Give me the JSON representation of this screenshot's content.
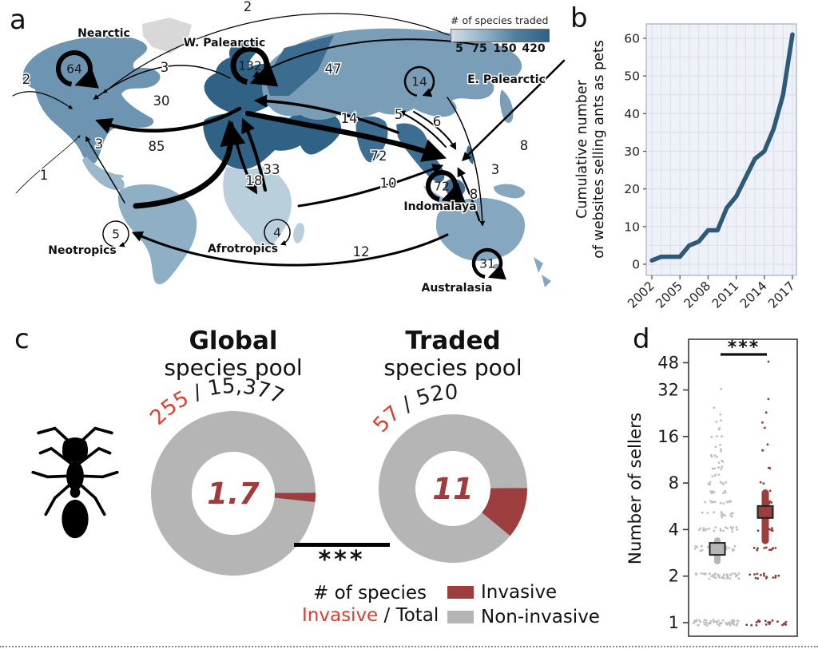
{
  "figure": {
    "panel_a_label": "a",
    "panel_b_label": "b",
    "panel_c_label": "c",
    "panel_d_label": "d"
  },
  "map": {
    "legend": {
      "title": "# of species traded",
      "ticks": [
        "5",
        "75",
        "150",
        "420"
      ]
    },
    "regions": [
      {
        "id": "nearctic",
        "label": "Nearctic",
        "self_value": "64"
      },
      {
        "id": "w_palearctic",
        "label": "W. Palearctic",
        "self_value": "132"
      },
      {
        "id": "e_palearctic",
        "label": "E. Palearctic",
        "self_value": "14"
      },
      {
        "id": "neotropics",
        "label": "Neotropics",
        "self_value": "5"
      },
      {
        "id": "afrotropics",
        "label": "Afrotropics",
        "self_value": "4"
      },
      {
        "id": "indomalaya",
        "label": "Indomalaya",
        "self_value": "72"
      },
      {
        "id": "australasia",
        "label": "Australasia",
        "self_value": "31"
      }
    ],
    "flows": [
      {
        "id": "top2",
        "value": "2"
      },
      {
        "id": "wp_na3",
        "value": "3"
      },
      {
        "id": "wp_na30",
        "value": "30"
      },
      {
        "id": "left2",
        "value": "2"
      },
      {
        "id": "left1",
        "value": "1"
      },
      {
        "id": "neo_na3",
        "value": "3"
      },
      {
        "id": "neo_wp85",
        "value": "85"
      },
      {
        "id": "ep_wp47",
        "value": "47"
      },
      {
        "id": "ep_wp14",
        "value": "14"
      },
      {
        "id": "wp_indo72",
        "value": "72"
      },
      {
        "id": "afr_wp33",
        "value": "33"
      },
      {
        "id": "wp_afr18",
        "value": "18"
      },
      {
        "id": "indo_ep5",
        "value": "5"
      },
      {
        "id": "ep_indo6",
        "value": "6"
      },
      {
        "id": "afr_indo10",
        "value": "10"
      },
      {
        "id": "aus_indo8",
        "value": "8"
      },
      {
        "id": "ep_aus3",
        "value": "3"
      },
      {
        "id": "right8",
        "value": "8"
      },
      {
        "id": "aus_neo12",
        "value": "12"
      }
    ]
  },
  "chart_data": [
    {
      "id": "websites_line",
      "type": "line",
      "ylabel_line1": "Cumulative number",
      "ylabel_line2": "of websites selling ants as pets",
      "x": [
        2002,
        2003,
        2004,
        2005,
        2006,
        2007,
        2008,
        2009,
        2010,
        2011,
        2012,
        2013,
        2014,
        2015,
        2016,
        2017
      ],
      "y": [
        1,
        2,
        2,
        2,
        5,
        6,
        9,
        9,
        15,
        18,
        23,
        28,
        30,
        36,
        45,
        61
      ],
      "x_ticks": [
        2002,
        2005,
        2008,
        2011,
        2014,
        2017
      ],
      "y_ticks": [
        0,
        10,
        20,
        30,
        40,
        50,
        60
      ],
      "ylim": [
        0,
        63
      ],
      "line_color": "#2d5a78",
      "grid": true
    },
    {
      "id": "global_pool",
      "type": "pie",
      "title_bold": "Global",
      "title_rest": "species pool",
      "invasive_count": "255",
      "total_count": "15,377",
      "center_value": "1.7",
      "invasive_pct": 1.7
    },
    {
      "id": "traded_pool",
      "type": "pie",
      "title_bold": "Traded",
      "title_rest": "species pool",
      "invasive_count": "57",
      "total_count": "520",
      "center_value": "11",
      "invasive_pct": 11
    },
    {
      "id": "sellers_swarm",
      "type": "scatter",
      "ylabel": "Number of sellers",
      "y_ticks": [
        1,
        2,
        4,
        8,
        16,
        32,
        48
      ],
      "significance": "***",
      "series": [
        {
          "name": "non-invasive",
          "color": "#bfbfbf",
          "mean": 3.0,
          "ci": [
            2.5,
            3.4
          ],
          "points": [
            {
              "v": 1,
              "n": 55
            },
            {
              "v": 2,
              "n": 40
            },
            {
              "v": 3,
              "n": 25
            },
            {
              "v": 4,
              "n": 20
            },
            {
              "v": 5,
              "n": 15
            },
            {
              "v": 6,
              "n": 12
            },
            {
              "v": 7,
              "n": 9
            },
            {
              "v": 8,
              "n": 7
            },
            {
              "v": 9,
              "n": 4
            },
            {
              "v": 10,
              "n": 5
            },
            {
              "v": 11,
              "n": 3
            },
            {
              "v": 12,
              "n": 4
            },
            {
              "v": 13,
              "n": 2
            },
            {
              "v": 14,
              "n": 2
            },
            {
              "v": 16,
              "n": 3
            },
            {
              "v": 18,
              "n": 2
            },
            {
              "v": 20,
              "n": 2
            },
            {
              "v": 22,
              "n": 1
            },
            {
              "v": 25,
              "n": 1
            },
            {
              "v": 33,
              "n": 1
            }
          ]
        },
        {
          "name": "invasive",
          "color": "#8e3b3b",
          "mean": 5.2,
          "ci": [
            3.4,
            6.9
          ],
          "points": [
            {
              "v": 1,
              "n": 20
            },
            {
              "v": 2,
              "n": 14
            },
            {
              "v": 3,
              "n": 10
            },
            {
              "v": 4,
              "n": 6
            },
            {
              "v": 5,
              "n": 5
            },
            {
              "v": 6,
              "n": 4
            },
            {
              "v": 7,
              "n": 2
            },
            {
              "v": 8,
              "n": 2
            },
            {
              "v": 10,
              "n": 2
            },
            {
              "v": 13,
              "n": 2
            },
            {
              "v": 14,
              "n": 1
            },
            {
              "v": 18,
              "n": 1
            },
            {
              "v": 20,
              "n": 1
            },
            {
              "v": 23,
              "n": 1
            },
            {
              "v": 28,
              "n": 1
            },
            {
              "v": 48,
              "n": 1
            }
          ]
        }
      ]
    }
  ],
  "panel_c": {
    "significance": "***",
    "caption_line1": "# of species",
    "caption_invasive": "Invasive",
    "caption_rest": " / Total",
    "label_separator": " / ",
    "legend": [
      {
        "label": "Invasive",
        "color": "#9e3d3d"
      },
      {
        "label": "Non-invasive",
        "color": "#b5b5b5"
      }
    ]
  },
  "colors": {
    "invasive_dark_red": "#9e3d3d",
    "invasive_text_red": "#d9402e",
    "noninvasive_gray": "#b5b5b5",
    "line_steel_blue": "#2d5a78",
    "map_dark": "#2f6285",
    "map_light": "#c3d5e0"
  }
}
